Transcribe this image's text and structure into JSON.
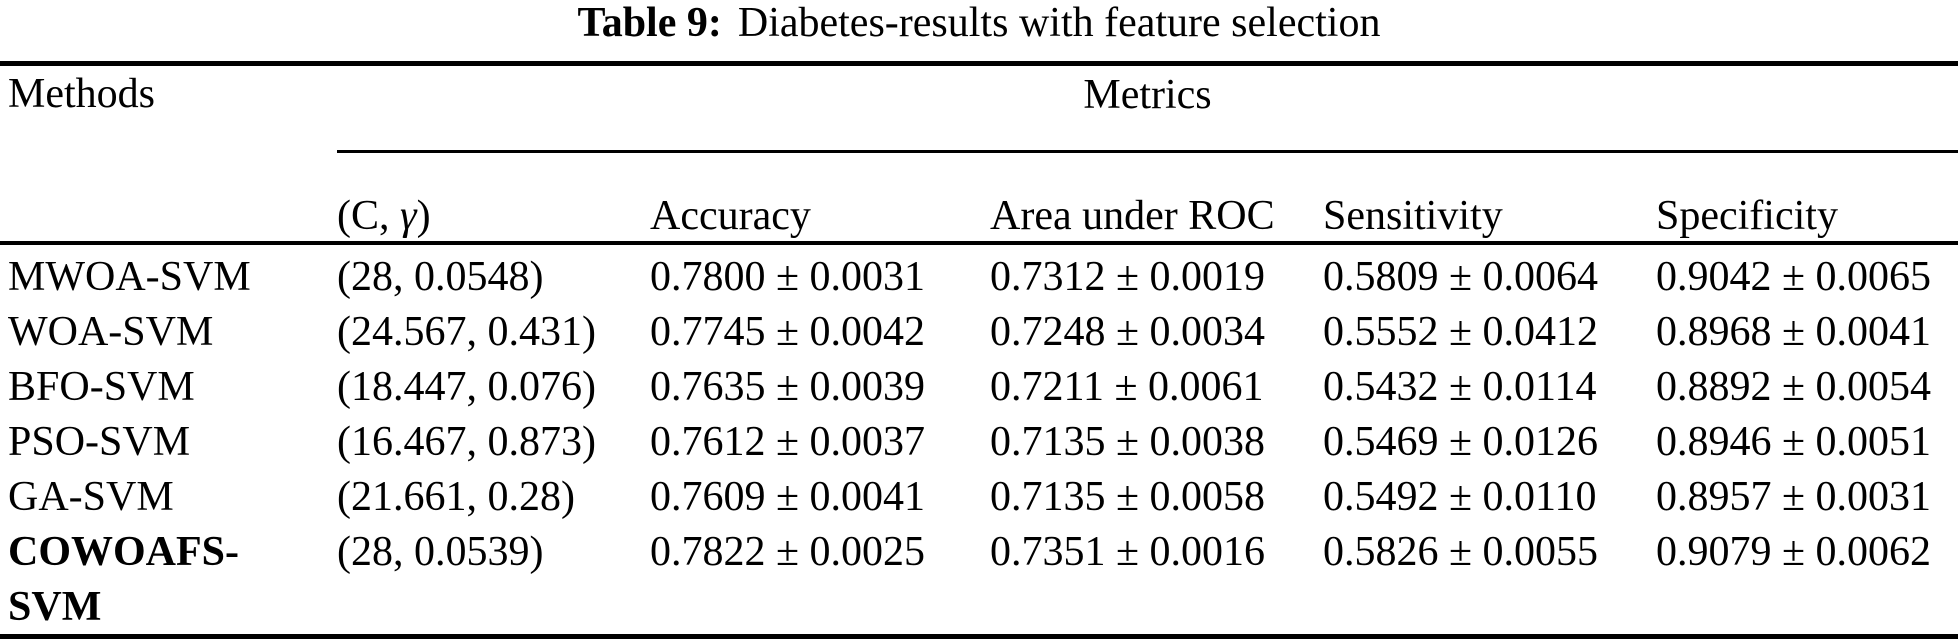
{
  "title": {
    "label": "Table 9:",
    "text": "Diabetes-results with feature selection"
  },
  "header": {
    "methods": "Methods",
    "metrics": "Metrics",
    "c_gamma": {
      "pre": "(C, ",
      "gamma": "γ",
      "post": ")"
    },
    "columns": [
      "Accuracy",
      "Area under ROC",
      "Sensitivity",
      "Specificity"
    ]
  },
  "rows": [
    {
      "method": "MWOA-SVM",
      "c_gamma": "(28, 0.0548)",
      "accuracy": "0.7800 ± 0.0031",
      "auc": "0.7312 ± 0.0019",
      "sensitivity": "0.5809 ± 0.0064",
      "specificity": "0.9042 ± 0.0065"
    },
    {
      "method": "WOA-SVM",
      "c_gamma": "(24.567, 0.431)",
      "accuracy": "0.7745 ± 0.0042",
      "auc": "0.7248 ± 0.0034",
      "sensitivity": "0.5552 ± 0.0412",
      "specificity": "0.8968 ± 0.0041"
    },
    {
      "method": "BFO-SVM",
      "c_gamma": "(18.447, 0.076)",
      "accuracy": "0.7635 ± 0.0039",
      "auc": "0.7211 ± 0.0061",
      "sensitivity": "0.5432 ± 0.0114",
      "specificity": "0.8892 ± 0.0054"
    },
    {
      "method": "PSO-SVM",
      "c_gamma": "(16.467, 0.873)",
      "accuracy": "0.7612 ± 0.0037",
      "auc": "0.7135 ± 0.0038",
      "sensitivity": "0.5469 ± 0.0126",
      "specificity": "0.8946 ± 0.0051"
    },
    {
      "method": "GA-SVM",
      "c_gamma": "(21.661, 0.28)",
      "accuracy": "0.7609 ± 0.0041",
      "auc": "0.7135 ± 0.0058",
      "sensitivity": "0.5492 ± 0.0110",
      "specificity": "0.8957 ± 0.0031"
    },
    {
      "method": "COWOAFS-SVM",
      "c_gamma": "(28, 0.0539)",
      "accuracy": "0.7822 ± 0.0025",
      "auc": "0.7351 ± 0.0016",
      "sensitivity": "0.5826 ± 0.0055",
      "specificity": "0.9079 ± 0.0062"
    }
  ],
  "colors": {
    "text": "#000000",
    "background": "#ffffff",
    "rule": "#000000"
  }
}
